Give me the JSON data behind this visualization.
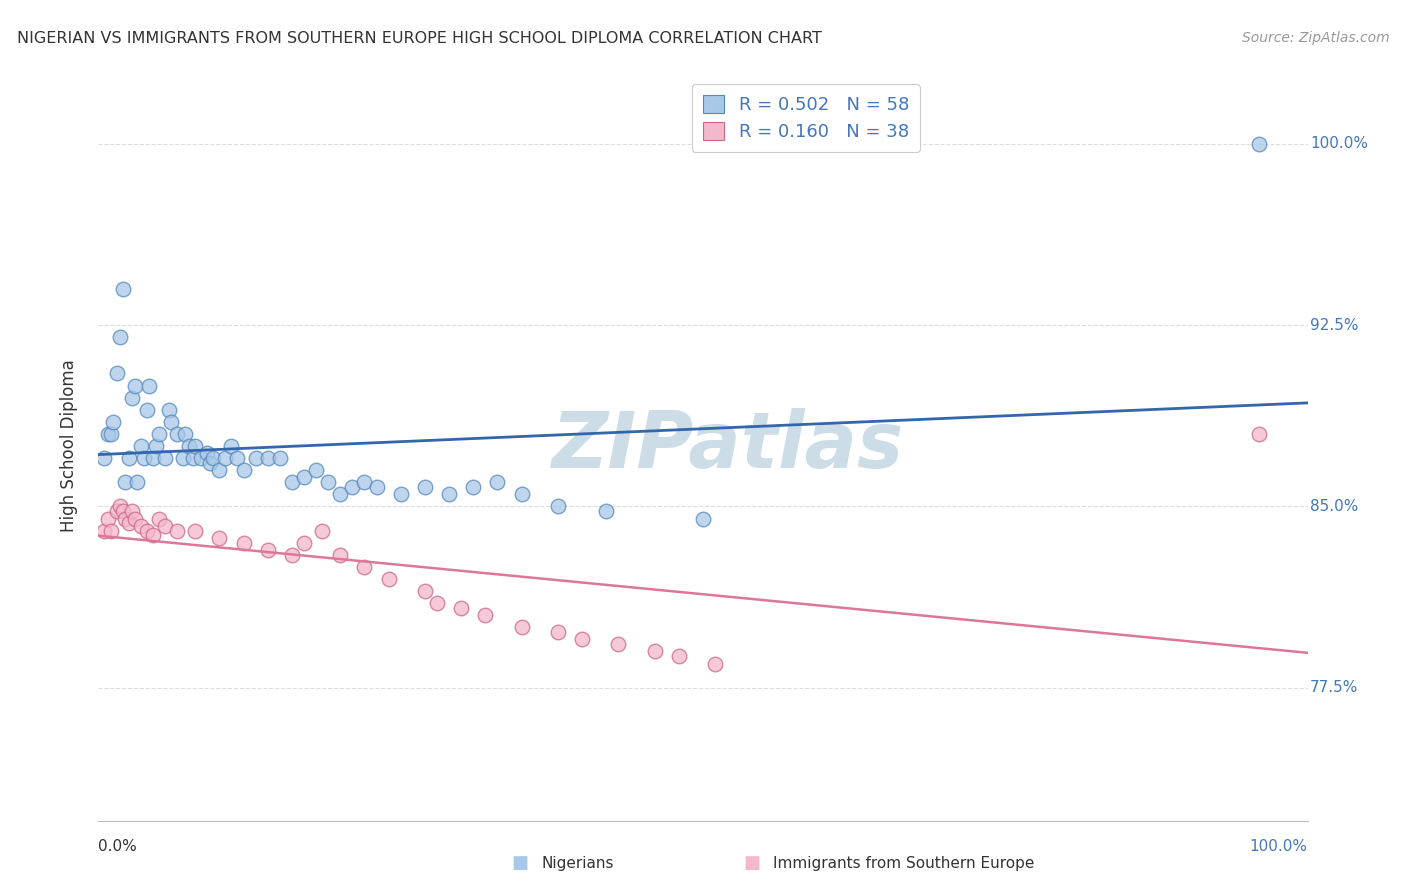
{
  "title": "NIGERIAN VS IMMIGRANTS FROM SOUTHERN EUROPE HIGH SCHOOL DIPLOMA CORRELATION CHART",
  "source": "Source: ZipAtlas.com",
  "ylabel": "High School Diploma",
  "R1": 0.502,
  "N1": 58,
  "R2": 0.16,
  "N2": 38,
  "color_blue_fill": "#a8c8e8",
  "color_blue_edge": "#5588bb",
  "color_blue_line": "#3366aa",
  "color_pink_fill": "#f4b8cc",
  "color_pink_edge": "#cc6688",
  "color_pink_line": "#dd7799",
  "watermark_color": "#ccdde8",
  "bg_color": "#ffffff",
  "grid_color": "#dddddd",
  "title_color": "#333333",
  "source_color": "#999999",
  "ytick_color": "#4477bb",
  "legend_text_color": "#4477bb",
  "yticks": [
    0.775,
    0.85,
    0.925,
    1.0
  ],
  "ytick_labels": [
    "77.5%",
    "85.0%",
    "92.5%",
    "100.0%"
  ],
  "xlim": [
    0.0,
    1.0
  ],
  "ylim": [
    0.72,
    1.03
  ],
  "nigerians_x": [
    0.005,
    0.008,
    0.01,
    0.012,
    0.015,
    0.018,
    0.02,
    0.022,
    0.025,
    0.028,
    0.03,
    0.032,
    0.035,
    0.038,
    0.04,
    0.042,
    0.045,
    0.048,
    0.05,
    0.055,
    0.058,
    0.06,
    0.065,
    0.07,
    0.072,
    0.075,
    0.078,
    0.08,
    0.085,
    0.09,
    0.092,
    0.095,
    0.1,
    0.105,
    0.11,
    0.115,
    0.12,
    0.13,
    0.14,
    0.15,
    0.16,
    0.17,
    0.18,
    0.19,
    0.2,
    0.21,
    0.22,
    0.23,
    0.25,
    0.27,
    0.29,
    0.31,
    0.33,
    0.35,
    0.38,
    0.42,
    0.5,
    0.96
  ],
  "nigerians_y": [
    0.87,
    0.88,
    0.88,
    0.885,
    0.905,
    0.92,
    0.94,
    0.86,
    0.87,
    0.895,
    0.9,
    0.86,
    0.875,
    0.87,
    0.89,
    0.9,
    0.87,
    0.875,
    0.88,
    0.87,
    0.89,
    0.885,
    0.88,
    0.87,
    0.88,
    0.875,
    0.87,
    0.875,
    0.87,
    0.872,
    0.868,
    0.87,
    0.865,
    0.87,
    0.875,
    0.87,
    0.865,
    0.87,
    0.87,
    0.87,
    0.86,
    0.862,
    0.865,
    0.86,
    0.855,
    0.858,
    0.86,
    0.858,
    0.855,
    0.858,
    0.855,
    0.858,
    0.86,
    0.855,
    0.85,
    0.848,
    0.845,
    1.0
  ],
  "europe_x": [
    0.005,
    0.008,
    0.01,
    0.015,
    0.018,
    0.02,
    0.022,
    0.025,
    0.028,
    0.03,
    0.035,
    0.04,
    0.045,
    0.05,
    0.055,
    0.065,
    0.08,
    0.1,
    0.12,
    0.14,
    0.16,
    0.17,
    0.185,
    0.2,
    0.22,
    0.24,
    0.27,
    0.28,
    0.3,
    0.32,
    0.35,
    0.38,
    0.4,
    0.43,
    0.46,
    0.48,
    0.51,
    0.96
  ],
  "europe_y": [
    0.84,
    0.845,
    0.84,
    0.848,
    0.85,
    0.848,
    0.845,
    0.843,
    0.848,
    0.845,
    0.842,
    0.84,
    0.838,
    0.845,
    0.842,
    0.84,
    0.84,
    0.837,
    0.835,
    0.832,
    0.83,
    0.835,
    0.84,
    0.83,
    0.825,
    0.82,
    0.815,
    0.81,
    0.808,
    0.805,
    0.8,
    0.798,
    0.795,
    0.793,
    0.79,
    0.788,
    0.785,
    0.88
  ]
}
